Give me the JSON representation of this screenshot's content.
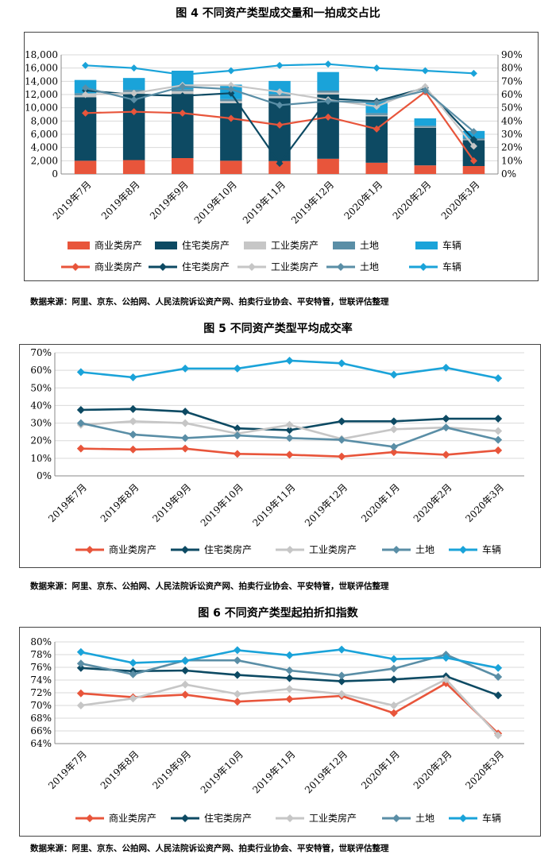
{
  "figures": [
    {
      "title": "图 4 不同资产类型成交量和一拍成交占比",
      "source": "数据来源：阿里、京东、公拍网、人民法院诉讼资产网、拍卖行业协会、平安特管，世联评估整理"
    },
    {
      "title": "图 5 不同资产类型平均成交率",
      "source": "数据来源：阿里、京东、公拍网、人民法院诉讼资产网、拍卖行业协会、平安特管，世联评估整理"
    },
    {
      "title": "图 6 不同资产类型起拍折扣指数",
      "source": "数据来源：阿里、京东、公拍网、人民法院诉讼资产网、拍卖行业协会、平安特管，世联评估整理"
    }
  ],
  "colors": {
    "commercial": "#e8553b",
    "residential": "#0d4a63",
    "industrial": "#c6c6c6",
    "land": "#5a8ea6",
    "vehicle": "#1aa3d9"
  },
  "chart_data": [
    {
      "type": "bar",
      "title": "图 4 不同资产类型成交量和一拍成交占比",
      "categories": [
        "2019年7月",
        "2019年8月",
        "2019年9月",
        "2019年10月",
        "2019年11月",
        "2019年12月",
        "2020年1月",
        "2020年2月",
        "2020年3月"
      ],
      "stacked": true,
      "ylim": [
        0,
        18000
      ],
      "yticks": [
        "0",
        "2,000",
        "4,000",
        "6,000",
        "8,000",
        "10,000",
        "12,000",
        "14,000",
        "16,000",
        "18,000"
      ],
      "y2lim": [
        0,
        0.9
      ],
      "y2ticks": [
        "0%",
        "10%",
        "20%",
        "30%",
        "40%",
        "50%",
        "60%",
        "70%",
        "80%",
        "90%"
      ],
      "bar_series": [
        {
          "name": "商业类房产",
          "color": "#e8553b",
          "values": [
            2000,
            2100,
            2400,
            2000,
            1950,
            2300,
            1700,
            1300,
            1200
          ]
        },
        {
          "name": "住宅类房产",
          "color": "#0d4a63",
          "values": [
            9600,
            10000,
            9700,
            8700,
            9500,
            9700,
            7000,
            5700,
            3900
          ]
        },
        {
          "name": "工业类房产",
          "color": "#c6c6c6",
          "values": [
            300,
            300,
            400,
            300,
            300,
            300,
            200,
            100,
            100
          ]
        },
        {
          "name": "土地",
          "color": "#5a8ea6",
          "values": [
            300,
            300,
            300,
            300,
            300,
            300,
            300,
            200,
            200
          ]
        },
        {
          "name": "车辆",
          "color": "#1aa3d9",
          "values": [
            2000,
            1800,
            2800,
            2200,
            2000,
            2800,
            1800,
            1100,
            1100
          ]
        }
      ],
      "line_series": [
        {
          "name": "商业类房产",
          "color": "#e8553b",
          "values": [
            0.46,
            0.47,
            0.46,
            0.42,
            0.37,
            0.43,
            0.34,
            0.62,
            0.1
          ]
        },
        {
          "name": "住宅类房产",
          "color": "#0d4a63",
          "values": [
            0.63,
            0.6,
            0.59,
            0.61,
            0.08,
            0.57,
            0.55,
            0.65,
            0.26
          ]
        },
        {
          "name": "工业类房产",
          "color": "#c6c6c6",
          "values": [
            0.6,
            0.61,
            0.67,
            0.67,
            0.62,
            0.56,
            0.51,
            0.66,
            0.21
          ]
        },
        {
          "name": "土地",
          "color": "#5a8ea6",
          "values": [
            0.65,
            0.56,
            0.66,
            0.64,
            0.52,
            0.55,
            0.54,
            0.63,
            0.32
          ]
        },
        {
          "name": "车辆",
          "color": "#1aa3d9",
          "values": [
            0.82,
            0.8,
            0.75,
            0.78,
            0.82,
            0.83,
            0.8,
            0.78,
            0.76
          ]
        }
      ]
    },
    {
      "type": "line",
      "title": "图 5 不同资产类型平均成交率",
      "categories": [
        "2019年7月",
        "2019年8月",
        "2019年9月",
        "2019年10月",
        "2019年11月",
        "2019年12月",
        "2020年1月",
        "2020年2月",
        "2020年3月"
      ],
      "ylim": [
        0,
        0.7
      ],
      "yticks": [
        "0%",
        "10%",
        "20%",
        "30%",
        "40%",
        "50%",
        "60%",
        "70%"
      ],
      "series": [
        {
          "name": "商业类房产",
          "color": "#e8553b",
          "values": [
            0.155,
            0.15,
            0.155,
            0.125,
            0.12,
            0.11,
            0.135,
            0.12,
            0.145
          ]
        },
        {
          "name": "住宅类房产",
          "color": "#0d4a63",
          "values": [
            0.375,
            0.38,
            0.365,
            0.27,
            0.26,
            0.31,
            0.31,
            0.325,
            0.325
          ]
        },
        {
          "name": "工业类房产",
          "color": "#c6c6c6",
          "values": [
            0.29,
            0.31,
            0.3,
            0.24,
            0.29,
            0.21,
            0.265,
            0.275,
            0.255
          ]
        },
        {
          "name": "土地",
          "color": "#5a8ea6",
          "values": [
            0.3,
            0.235,
            0.215,
            0.23,
            0.215,
            0.205,
            0.165,
            0.275,
            0.205
          ]
        },
        {
          "name": "车辆",
          "color": "#1aa3d9",
          "values": [
            0.59,
            0.56,
            0.61,
            0.61,
            0.655,
            0.64,
            0.575,
            0.615,
            0.555
          ]
        }
      ]
    },
    {
      "type": "line",
      "title": "图 6 不同资产类型起拍折扣指数",
      "categories": [
        "2019年7月",
        "2019年8月",
        "2019年9月",
        "2019年10月",
        "2019年11月",
        "2019年12月",
        "2020年1月",
        "2020年2月",
        "2020年3月"
      ],
      "ylim": [
        0.64,
        0.8
      ],
      "yticks": [
        "64%",
        "66%",
        "68%",
        "70%",
        "72%",
        "74%",
        "76%",
        "78%",
        "80%"
      ],
      "series": [
        {
          "name": "商业类房产",
          "color": "#e8553b",
          "values": [
            0.719,
            0.713,
            0.717,
            0.706,
            0.71,
            0.715,
            0.688,
            0.735,
            0.656
          ]
        },
        {
          "name": "住宅类房产",
          "color": "#0d4a63",
          "values": [
            0.759,
            0.754,
            0.755,
            0.748,
            0.743,
            0.738,
            0.741,
            0.746,
            0.716
          ]
        },
        {
          "name": "工业类房产",
          "color": "#c6c6c6",
          "values": [
            0.7,
            0.711,
            0.733,
            0.718,
            0.726,
            0.718,
            0.7,
            0.741,
            0.653
          ]
        },
        {
          "name": "土地",
          "color": "#5a8ea6",
          "values": [
            0.766,
            0.749,
            0.771,
            0.771,
            0.755,
            0.747,
            0.758,
            0.78,
            0.745
          ]
        },
        {
          "name": "车辆",
          "color": "#1aa3d9",
          "values": [
            0.784,
            0.767,
            0.77,
            0.787,
            0.779,
            0.788,
            0.773,
            0.775,
            0.759
          ]
        }
      ]
    }
  ]
}
